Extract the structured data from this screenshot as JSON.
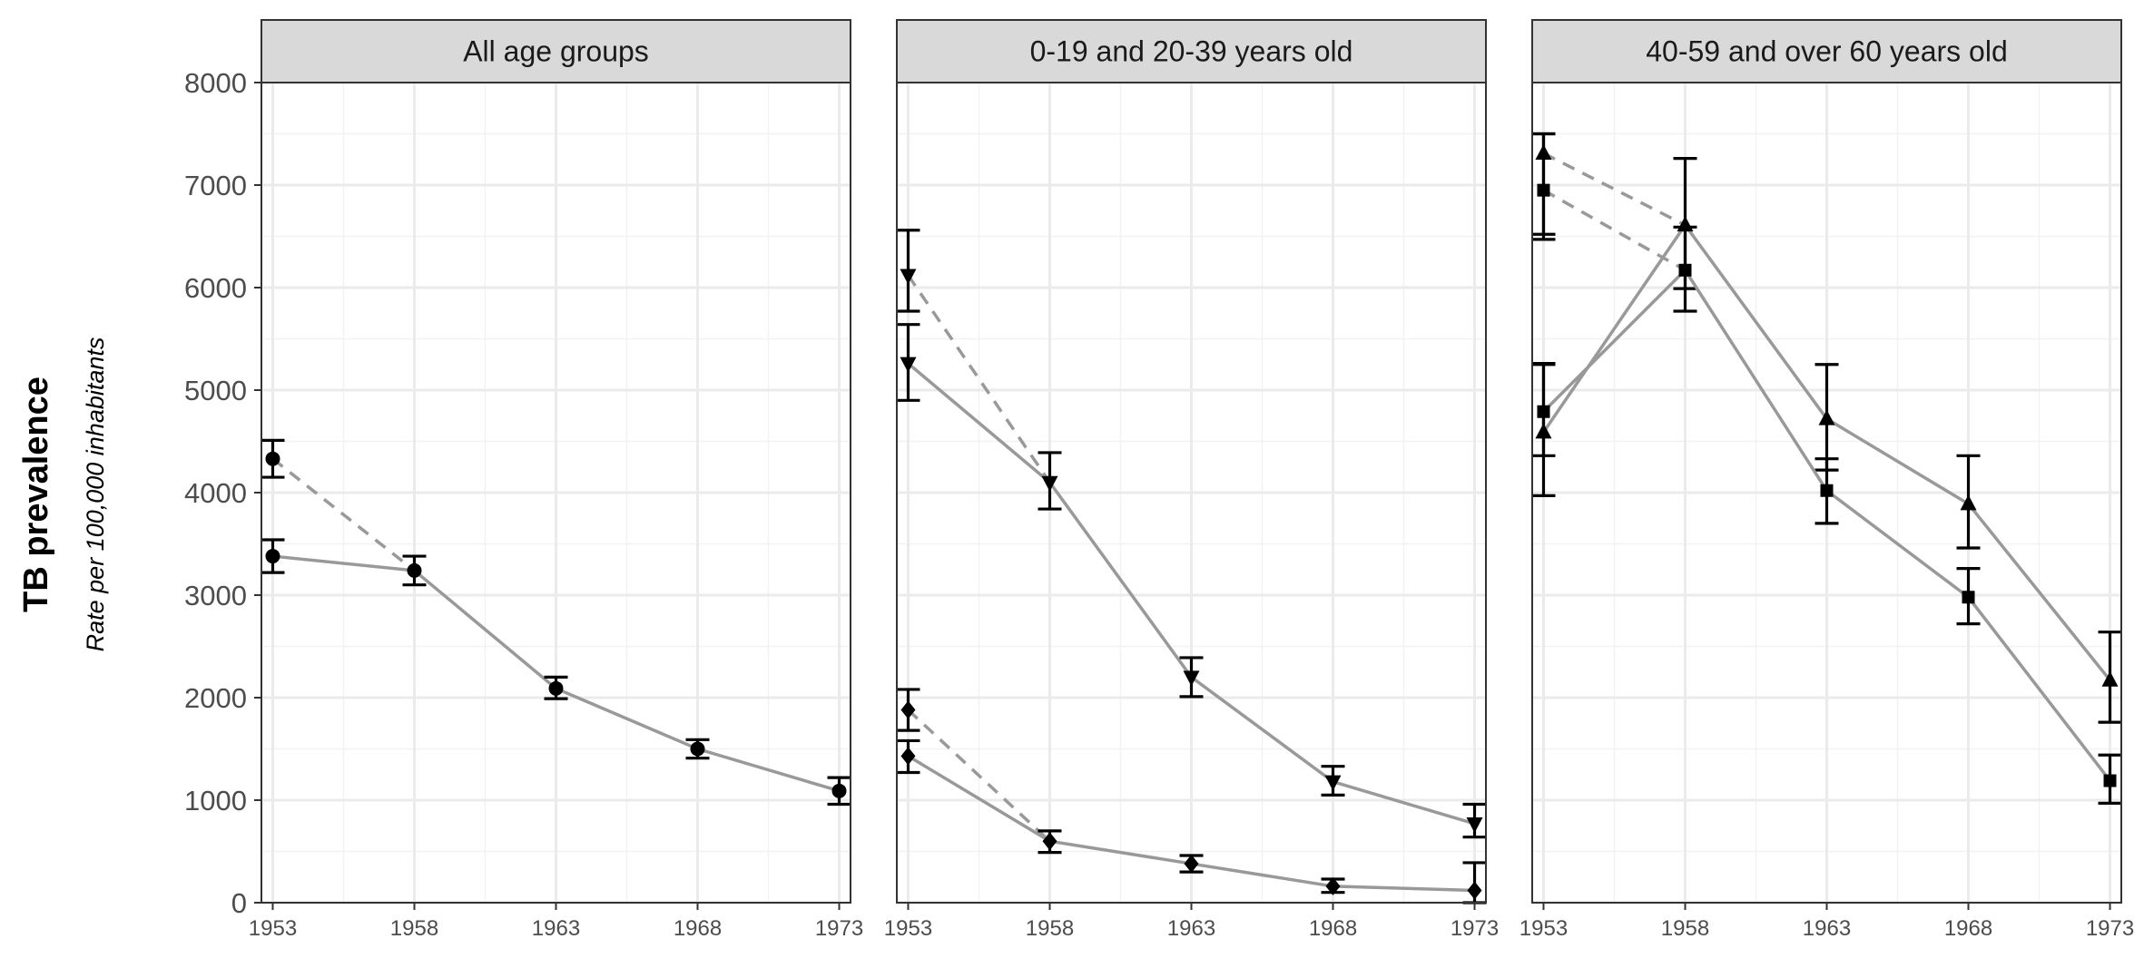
{
  "chart_data": {
    "type": "line",
    "title": "",
    "ylabel": "TB prevalence",
    "ysublabel": "Rate per 100,000 inhabitants",
    "ylim": [
      0,
      8000
    ],
    "yticks": [
      0,
      1000,
      2000,
      3000,
      4000,
      5000,
      6000,
      7000,
      8000
    ],
    "xticks": [
      1953,
      1958,
      1963,
      1968,
      1973
    ],
    "xlim": [
      1952.6,
      1973.4
    ],
    "grid": true,
    "legend": "none",
    "colors": {
      "line": "#999999",
      "marker": "#000000",
      "errorbar": "#000000",
      "strip_fill": "#d9d9d9",
      "grid_major": "#ebebeb",
      "grid_minor": "#f2f2f2",
      "panel_border": "#333333"
    },
    "panels": [
      {
        "strip": "All age groups",
        "series": [
          {
            "marker": "circle",
            "x": [
              1953,
              1958,
              1963,
              1968,
              1973
            ],
            "y": [
              3380,
              3240,
              2090,
              1500,
              1090
            ],
            "lower": [
              3220,
              3100,
              1990,
              1410,
              960
            ],
            "upper": [
              3540,
              3380,
              2200,
              1590,
              1220
            ],
            "dashed_from": {
              "x": 1953,
              "y": 4330,
              "lower": 4150,
              "upper": 4510
            }
          }
        ]
      },
      {
        "strip": "0-19 and 20-39 years old",
        "series": [
          {
            "marker": "triangle-down",
            "x": [
              1953,
              1958,
              1963,
              1968,
              1973
            ],
            "y": [
              5260,
              4100,
              2200,
              1180,
              770
            ],
            "lower": [
              4900,
              3840,
              2010,
              1050,
              640
            ],
            "upper": [
              5640,
              4390,
              2390,
              1330,
              960
            ],
            "dashed_from": {
              "x": 1953,
              "y": 6120,
              "lower": 5770,
              "upper": 6560
            }
          },
          {
            "marker": "diamond",
            "x": [
              1953,
              1958,
              1963,
              1968,
              1973
            ],
            "y": [
              1430,
              600,
              380,
              160,
              120
            ],
            "lower": [
              1270,
              490,
              300,
              100,
              0
            ],
            "upper": [
              1580,
              700,
              460,
              230,
              390
            ],
            "dashed_from": {
              "x": 1953,
              "y": 1880,
              "lower": 1680,
              "upper": 2080
            }
          }
        ]
      },
      {
        "strip": "40-59 and over 60 years old",
        "series": [
          {
            "marker": "triangle-up",
            "x": [
              1953,
              1958,
              1963,
              1968,
              1973
            ],
            "y": [
              4590,
              6610,
              4720,
              3890,
              2170
            ],
            "lower": [
              3970,
              5990,
              4220,
              3460,
              1760
            ],
            "upper": [
              5250,
              7260,
              5250,
              4360,
              2640
            ],
            "dashed_from": {
              "x": 1953,
              "y": 7310,
              "lower": 6520,
              "upper": 7500
            }
          },
          {
            "marker": "square",
            "x": [
              1953,
              1958,
              1963,
              1968,
              1973
            ],
            "y": [
              4790,
              6170,
              4020,
              2980,
              1190
            ],
            "lower": [
              4360,
              5770,
              3700,
              2720,
              970
            ],
            "upper": [
              5260,
              6590,
              4330,
              3260,
              1440
            ],
            "dashed_from": {
              "x": 1953,
              "y": 6950,
              "lower": 6470,
              "upper": 7500
            }
          }
        ]
      }
    ]
  }
}
